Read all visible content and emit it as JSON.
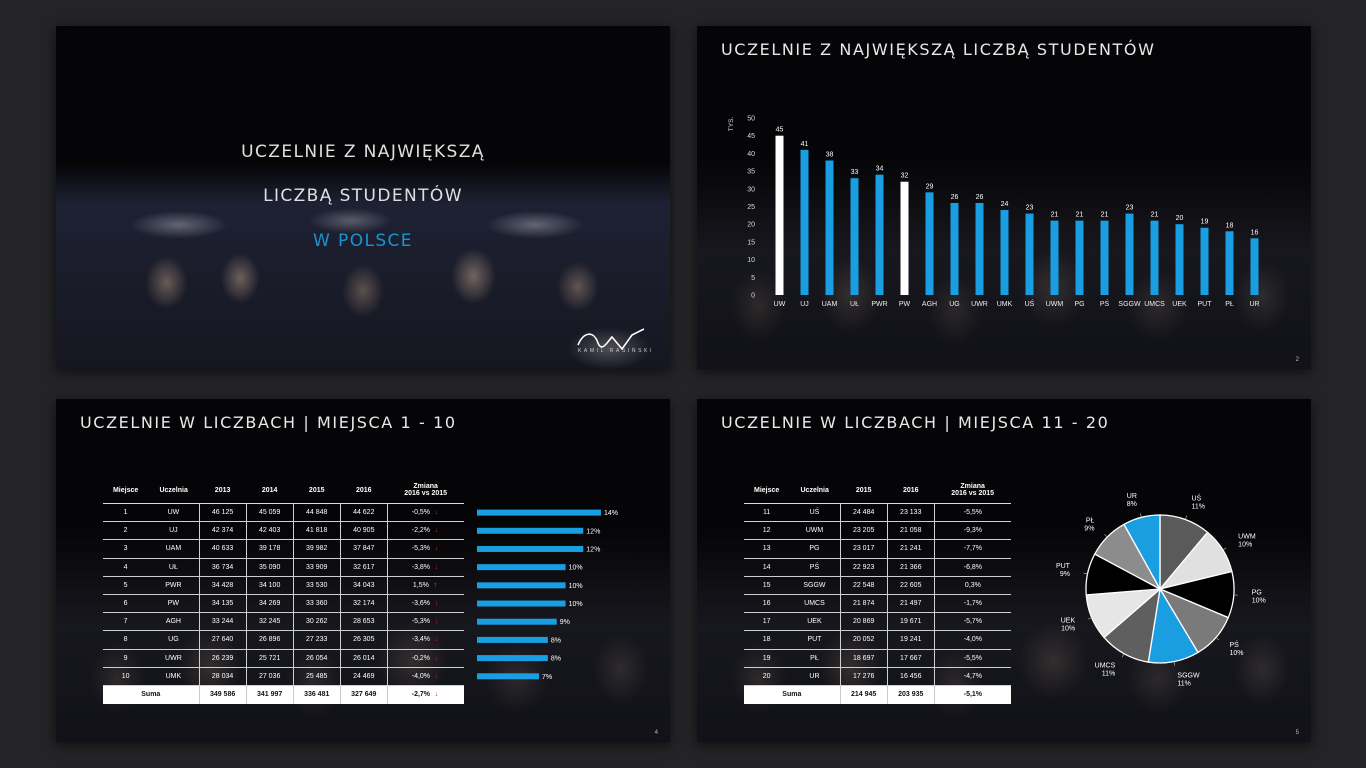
{
  "slide1": {
    "line1": "UCZELNIE Z NAJWIĘKSZĄ",
    "line2": "LICZBĄ STUDENTÓW",
    "line3": "W POLSCE",
    "logo_text": "KAMIL RASIŃSKI",
    "accent": "#1596d3"
  },
  "slide2": {
    "title": "UCZELNIE Z NAJWIĘKSZĄ LICZBĄ STUDENTÓW",
    "page": "2",
    "chart_data": {
      "type": "bar",
      "ylabel": "TYS.",
      "ylim": [
        0,
        50
      ],
      "yticks": [
        0,
        5,
        10,
        15,
        20,
        25,
        30,
        35,
        40,
        45,
        50
      ],
      "categories": [
        "UW",
        "UJ",
        "UAM",
        "UŁ",
        "PWR",
        "PW",
        "AGH",
        "UG",
        "UWR",
        "UMK",
        "UŚ",
        "UWM",
        "PG",
        "PŚ",
        "SGGW",
        "UMCS",
        "UEK",
        "PUT",
        "PŁ",
        "UR"
      ],
      "values": [
        45,
        41,
        38,
        33,
        34,
        32,
        29,
        26,
        26,
        24,
        23,
        21,
        21,
        21,
        23,
        21,
        20,
        19,
        18,
        16
      ],
      "highlight": [
        "UW",
        "PW"
      ],
      "colors": {
        "bar": "#1a9ee2",
        "highlight": "#ffffff"
      }
    }
  },
  "slide3": {
    "title": "UCZELNIE W LICZBACH | MIEJSCA 1 - 10",
    "page": "4",
    "headers": [
      "Miejsce",
      "Uczelnia",
      "2013",
      "2014",
      "2015",
      "2016",
      "Zmiana\n2016 vs 2015"
    ],
    "rows": [
      [
        "1",
        "UW",
        "46 125",
        "45 059",
        "44 848",
        "44 622",
        "-0,5%",
        "down"
      ],
      [
        "2",
        "UJ",
        "42 374",
        "42 403",
        "41 818",
        "40 905",
        "-2,2%",
        "down"
      ],
      [
        "3",
        "UAM",
        "40 633",
        "39 178",
        "39 982",
        "37 847",
        "-5,3%",
        "down"
      ],
      [
        "4",
        "UŁ",
        "36 734",
        "35 090",
        "33 909",
        "32 617",
        "-3,8%",
        "down"
      ],
      [
        "5",
        "PWR",
        "34 428",
        "34 100",
        "33 530",
        "34 043",
        "1,5%",
        "up"
      ],
      [
        "6",
        "PW",
        "34 135",
        "34 269",
        "33 360",
        "32 174",
        "-3,6%",
        "down"
      ],
      [
        "7",
        "AGH",
        "33 244",
        "32 245",
        "30 262",
        "28 653",
        "-5,3%",
        "down"
      ],
      [
        "8",
        "UG",
        "27 640",
        "26 896",
        "27 233",
        "26 305",
        "-3,4%",
        "down"
      ],
      [
        "9",
        "UWR",
        "26 239",
        "25 721",
        "26 054",
        "26 014",
        "-0,2%",
        "down"
      ],
      [
        "10",
        "UMK",
        "28 034",
        "27 036",
        "25 485",
        "24 469",
        "-4,0%",
        "down"
      ]
    ],
    "sum": [
      "Suma",
      "349 586",
      "341 997",
      "336 481",
      "327 649",
      "-2,7%",
      "down"
    ],
    "chart_data": {
      "type": "bar",
      "orientation": "horizontal",
      "categories": [
        "UW",
        "UJ",
        "UAM",
        "UŁ",
        "PWR",
        "PW",
        "AGH",
        "UG",
        "UWR",
        "UMK"
      ],
      "values": [
        14,
        12,
        12,
        10,
        10,
        10,
        9,
        8,
        8,
        7
      ],
      "value_labels": [
        "14%",
        "12%",
        "12%",
        "10%",
        "10%",
        "10%",
        "9%",
        "8%",
        "8%",
        "7%"
      ],
      "colors": {
        "bar": "#1a9ee2"
      }
    }
  },
  "slide4": {
    "title": "UCZELNIE W LICZBACH | MIEJSCA 11 - 20",
    "page": "5",
    "headers": [
      "Miejsce",
      "Uczelnia",
      "2015",
      "2016",
      "Zmiana\n2016 vs 2015"
    ],
    "rows": [
      [
        "11",
        "UŚ",
        "24 484",
        "23 133",
        "-5,5%"
      ],
      [
        "12",
        "UWM",
        "23 205",
        "21 058",
        "-9,3%"
      ],
      [
        "13",
        "PG",
        "23 017",
        "21 241",
        "-7,7%"
      ],
      [
        "14",
        "PŚ",
        "22 923",
        "21 366",
        "-6,8%"
      ],
      [
        "15",
        "SGGW",
        "22 548",
        "22 605",
        "0,3%"
      ],
      [
        "16",
        "UMCS",
        "21 874",
        "21 497",
        "-1,7%"
      ],
      [
        "17",
        "UEK",
        "20 869",
        "19 671",
        "-5,7%"
      ],
      [
        "18",
        "PUT",
        "20 052",
        "19 241",
        "-4,0%"
      ],
      [
        "19",
        "PŁ",
        "18 697",
        "17 667",
        "-5,5%"
      ],
      [
        "20",
        "UR",
        "17 276",
        "16 456",
        "-4,7%"
      ]
    ],
    "sum": [
      "Suma",
      "214 945",
      "203 935",
      "-5,1%"
    ],
    "chart_data": {
      "type": "pie",
      "labels": [
        "UŚ",
        "UWM",
        "PG",
        "PŚ",
        "SGGW",
        "UMCS",
        "UEK",
        "PUT",
        "PŁ",
        "UR"
      ],
      "values": [
        11,
        10,
        10,
        10,
        11,
        11,
        10,
        9,
        9,
        8
      ],
      "value_labels": [
        "11%",
        "10%",
        "10%",
        "10%",
        "11%",
        "11%",
        "10%",
        "9%",
        "9%",
        "8%"
      ],
      "colors": [
        "#5a5a5a",
        "#e0e0e0",
        "#000000",
        "#7a7a7a",
        "#1a9ee2",
        "#5f5f5f",
        "#e6e6e6",
        "#000000",
        "#8c8c8c",
        "#1a9ee2"
      ]
    }
  }
}
